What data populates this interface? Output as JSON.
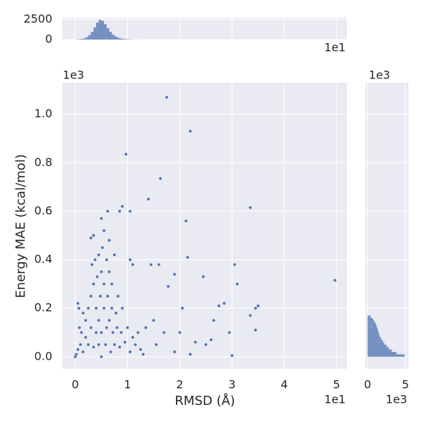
{
  "chart_data": [
    {
      "type": "scatter",
      "x_label": "RMSD (Å)",
      "y_label": "Energy MAE (kcal/mol)",
      "x_offset": "1e1",
      "y_offset": "1e3",
      "xlim": [
        -0.25,
        5.2
      ],
      "ylim": [
        -0.05,
        1.13
      ],
      "xticks": [
        0,
        1,
        2,
        3,
        4,
        5
      ],
      "yticks": [
        {
          "value": 0,
          "label": "0.0"
        },
        0.2,
        0.4,
        0.6,
        0.8,
        {
          "value": 1,
          "label": "1.0"
        }
      ],
      "grid": true,
      "color": "#4c72b0",
      "series": [
        {
          "name": "points",
          "x": [
            1.75,
            2.2,
            0.97,
            1.63,
            1.4,
            3.35,
            1.05,
            2.12,
            2.15,
            3.05,
            4.97,
            3.1,
            1.9,
            2.45,
            1.45,
            1.6,
            1.78,
            3.45,
            3.5,
            3.35,
            3.45,
            2.85,
            2.75,
            2.65,
            2.05,
            2.0,
            2.3,
            2.5,
            2.6,
            2.95,
            3.0,
            1.55,
            1.9,
            2.2,
            1.7,
            1.5,
            1.35,
            1.1,
            1.05,
            0.9,
            0.85,
            0.5,
            0.62,
            0.3,
            0.05,
            0.07,
            0.0,
            0.02,
            0.05,
            0.1,
            0.12,
            0.15,
            0.2,
            0.2,
            0.25,
            0.25,
            0.3,
            0.3,
            0.32,
            0.35,
            0.35,
            0.38,
            0.4,
            0.4,
            0.42,
            0.45,
            0.45,
            0.45,
            0.48,
            0.5,
            0.5,
            0.5,
            0.52,
            0.55,
            0.55,
            0.58,
            0.6,
            0.6,
            0.62,
            0.65,
            0.65,
            0.68,
            0.7,
            0.7,
            0.72,
            0.75,
            0.78,
            0.8,
            0.82,
            0.85,
            0.88,
            0.9,
            0.95,
            1.0,
            1.05,
            1.1,
            1.15,
            1.2,
            1.25,
            1.3,
            0.15,
            0.35,
            0.55,
            0.65,
            0.75,
            0.08
          ],
          "y": [
            1.07,
            0.93,
            0.835,
            0.735,
            0.65,
            0.615,
            0.6,
            0.56,
            0.41,
            0.38,
            0.315,
            0.3,
            0.34,
            0.33,
            0.38,
            0.38,
            0.29,
            0.2,
            0.21,
            0.17,
            0.11,
            0.22,
            0.21,
            0.15,
            0.2,
            0.1,
            0.06,
            0.05,
            0.07,
            0.1,
            0.005,
            0.05,
            0.02,
            0.01,
            0.1,
            0.15,
            0.12,
            0.38,
            0.4,
            0.62,
            0.6,
            0.57,
            0.6,
            0.49,
            0.22,
            0.2,
            0.0,
            0.01,
            0.03,
            0.05,
            0.1,
            0.02,
            0.08,
            0.15,
            0.05,
            0.2,
            0.12,
            0.25,
            0.38,
            0.04,
            0.3,
            0.4,
            0.1,
            0.2,
            0.33,
            0.05,
            0.15,
            0.42,
            0.25,
            0.0,
            0.1,
            0.35,
            0.45,
            0.2,
            0.3,
            0.05,
            0.12,
            0.4,
            0.25,
            0.15,
            0.35,
            0.02,
            0.2,
            0.3,
            0.1,
            0.05,
            0.18,
            0.12,
            0.25,
            0.04,
            0.1,
            0.2,
            0.06,
            0.12,
            0.02,
            0.08,
            0.05,
            0.1,
            0.03,
            0.01,
            0.18,
            0.5,
            0.52,
            0.48,
            0.42,
            0.12
          ]
        }
      ]
    },
    {
      "type": "histogram",
      "orientation": "vertical",
      "x_offset": "1e1",
      "color": "#4c72b0",
      "grid": true,
      "xlim": [
        -0.25,
        5.2
      ],
      "xticks": [
        0,
        1,
        2,
        3,
        4,
        5
      ],
      "ylim": [
        0,
        2700
      ],
      "yticks": [
        0,
        2500
      ],
      "bins": [
        0,
        0.05,
        0.1,
        0.15,
        0.2,
        0.25,
        0.3,
        0.35,
        0.4,
        0.45,
        0.5,
        0.55,
        0.6,
        0.65,
        0.7,
        0.75,
        0.8,
        0.85,
        0.9,
        0.95,
        1.0,
        1.05,
        1.1,
        1.15,
        1.2,
        1.25,
        1.3
      ],
      "counts": [
        20,
        40,
        80,
        150,
        300,
        550,
        950,
        1500,
        2100,
        2450,
        2300,
        1900,
        1400,
        950,
        600,
        380,
        230,
        140,
        80,
        50,
        30,
        20,
        12,
        8,
        5,
        3
      ]
    },
    {
      "type": "histogram",
      "orientation": "horizontal",
      "x_offset": "1e3",
      "y_offset": "1e3",
      "color": "#4c72b0",
      "grid": true,
      "xlim": [
        -0.3,
        5.4
      ],
      "xticks": [
        0,
        5
      ],
      "ylim": [
        -0.05,
        1.13
      ],
      "yticks": [
        0,
        0.2,
        0.4,
        0.6,
        0.8,
        1
      ],
      "bins": [
        0,
        0.01,
        0.02,
        0.03,
        0.04,
        0.05,
        0.06,
        0.07,
        0.08,
        0.09,
        0.1,
        0.11,
        0.12,
        0.13,
        0.14,
        0.15,
        0.16,
        0.17
      ],
      "counts": [
        4.9,
        3.8,
        3.2,
        2.8,
        2.5,
        2.2,
        2.0,
        1.8,
        1.6,
        1.5,
        1.4,
        1.3,
        1.2,
        1.1,
        0.9,
        0.7,
        0.4
      ]
    }
  ]
}
